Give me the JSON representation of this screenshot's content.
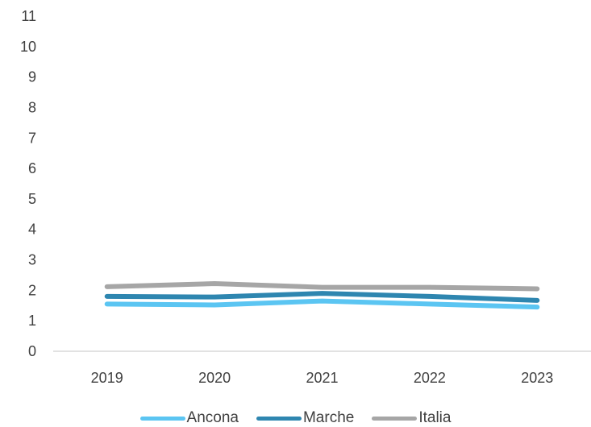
{
  "chart_data": {
    "type": "line",
    "categories": [
      "2019",
      "2020",
      "2021",
      "2022",
      "2023"
    ],
    "ylim": [
      0,
      11
    ],
    "y_ticks": [
      "0",
      "1",
      "2",
      "3",
      "4",
      "5",
      "6",
      "7",
      "8",
      "9",
      "10",
      "11"
    ],
    "grid": false,
    "legend_position": "bottom",
    "series": [
      {
        "name": "Ancona",
        "color": "#5BC5F2",
        "values": [
          1.55,
          1.52,
          1.65,
          1.55,
          1.45
        ]
      },
      {
        "name": "Marche",
        "color": "#2E86B0",
        "values": [
          1.8,
          1.78,
          1.9,
          1.8,
          1.67
        ]
      },
      {
        "name": "Italia",
        "color": "#A6A6A6",
        "values": [
          2.12,
          2.22,
          2.1,
          2.1,
          2.05
        ]
      }
    ]
  }
}
